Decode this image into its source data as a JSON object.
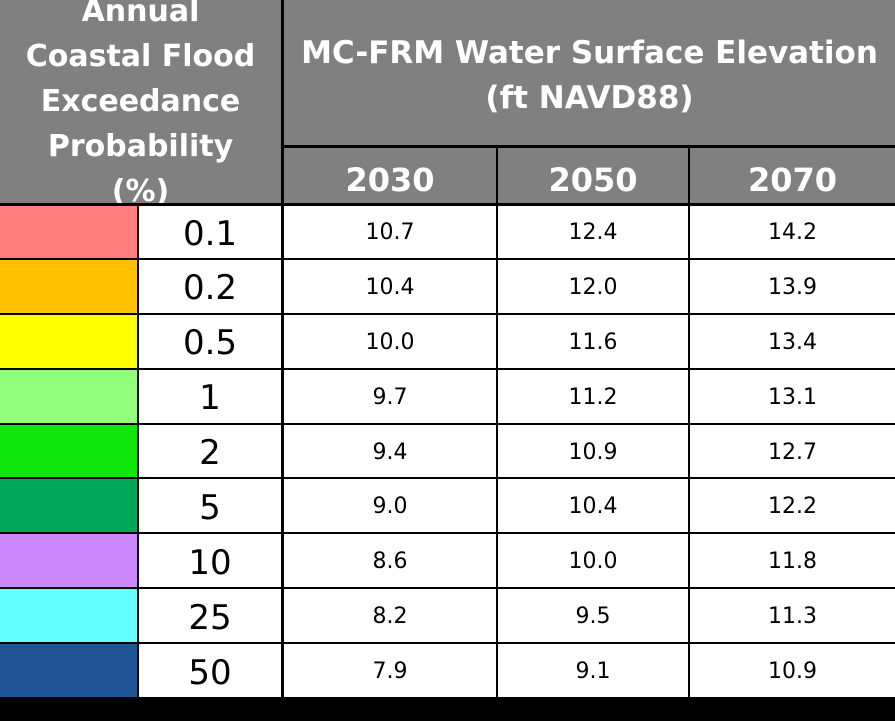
{
  "chart_data": {
    "type": "table",
    "title": "MC-FRM Water Surface Elevation (ft NAVD88)",
    "row_header": "Annual Coastal Flood Exceedance Probability (%)",
    "columns": [
      "2030",
      "2050",
      "2070"
    ],
    "rows": [
      {
        "probability": "0.1",
        "color": "#ff7f7f",
        "values": [
          "10.7",
          "12.4",
          "14.2"
        ]
      },
      {
        "probability": "0.2",
        "color": "#ffc000",
        "values": [
          "10.4",
          "12.0",
          "13.9"
        ]
      },
      {
        "probability": "0.5",
        "color": "#ffff00",
        "values": [
          "10.0",
          "11.6",
          "13.4"
        ]
      },
      {
        "probability": "1",
        "color": "#92ff7a",
        "values": [
          "9.7",
          "11.2",
          "13.1"
        ]
      },
      {
        "probability": "2",
        "color": "#11e60a",
        "values": [
          "9.4",
          "10.9",
          "12.7"
        ]
      },
      {
        "probability": "5",
        "color": "#00a65a",
        "values": [
          "9.0",
          "10.4",
          "12.2"
        ]
      },
      {
        "probability": "10",
        "color": "#cc88ff",
        "values": [
          "8.6",
          "10.0",
          "11.8"
        ]
      },
      {
        "probability": "25",
        "color": "#66ffff",
        "values": [
          "8.2",
          "9.5",
          "11.3"
        ]
      },
      {
        "probability": "50",
        "color": "#1f5597",
        "values": [
          "7.9",
          "9.1",
          "10.9"
        ]
      }
    ]
  }
}
